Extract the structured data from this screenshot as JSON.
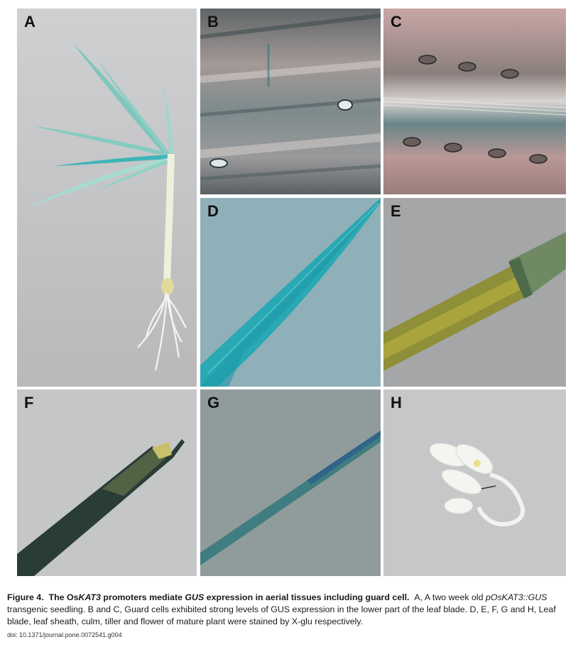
{
  "figure": {
    "panels": [
      {
        "label": "A",
        "subject": "two-week-old seedling"
      },
      {
        "label": "B",
        "subject": "guard cells"
      },
      {
        "label": "C",
        "subject": "guard cells"
      },
      {
        "label": "D",
        "subject": "leaf blade"
      },
      {
        "label": "E",
        "subject": "leaf sheath"
      },
      {
        "label": "F",
        "subject": "culm"
      },
      {
        "label": "G",
        "subject": "tiller"
      },
      {
        "label": "H",
        "subject": "flower"
      }
    ],
    "caption": {
      "fig_num": "Figure 4.",
      "title_pre": "The Os",
      "title_gene": "KAT3",
      "title_mid": " promoters mediate ",
      "title_gus": "GUS",
      "title_post": " expression in aerial tissues including guard cell.",
      "body_1": "A, A two week old ",
      "body_construct": "pOsKAT3::GUS",
      "body_2": " transgenic seedling. B and C, Guard cells exhibited strong levels of GUS expression in the lower part of the leaf blade. D, E, F, G and H, Leaf blade, leaf sheath, culm, tiller and flower of mature plant were stained by X-glu respectively."
    },
    "doi": "doi: 10.1371/journal.pone.0072541.g004"
  }
}
